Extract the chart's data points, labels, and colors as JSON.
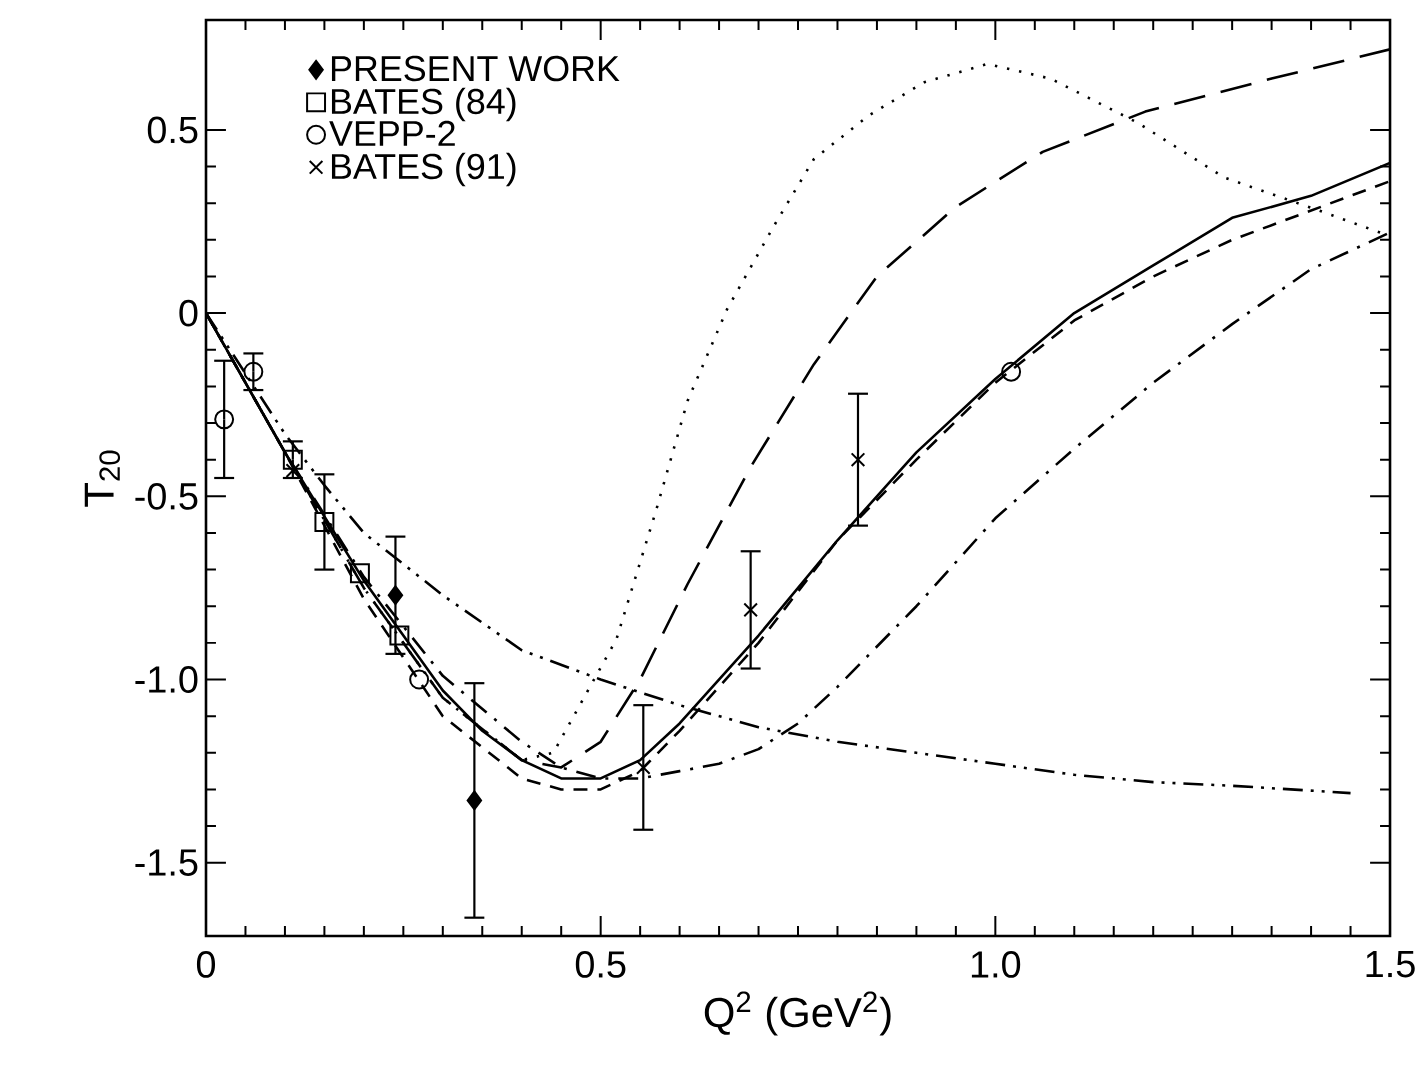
{
  "chart_data": {
    "type": "scatter",
    "xlabel": "Q$^{2}$ (GeV$^{2}$)",
    "ylabel": "T$_{20}$",
    "xlim": [
      0,
      1.5
    ],
    "ylim": [
      -1.7,
      0.8
    ],
    "xticks": [
      0,
      0.5,
      {
        "value": 1.0,
        "label": "1.0"
      },
      1.5
    ],
    "yticks": [
      -1.5,
      {
        "value": -1.0,
        "label": "-1.0"
      },
      -0.5,
      0,
      0.5
    ],
    "legend": "top left",
    "series": [
      {
        "name": "PRESENT WORK",
        "marker": "diamond",
        "color": "#000000",
        "x": [
          0.24,
          0.34
        ],
        "values": [
          -0.77,
          -1.33
        ],
        "errors": [
          0.16,
          0.32
        ]
      },
      {
        "name": "BATES (84)",
        "marker": "square",
        "color": "#000000",
        "x": [
          0.11,
          0.15,
          0.195,
          0.245
        ],
        "values": [
          -0.4,
          -0.57,
          -0.71,
          -0.88
        ],
        "errors": [
          0.05,
          0.13,
          null,
          null
        ]
      },
      {
        "name": "VEPP-2",
        "marker": "circle",
        "color": "#000000",
        "x": [
          0.023,
          0.06,
          0.27,
          1.02
        ],
        "values": [
          -0.29,
          -0.16,
          -1.0,
          -0.16
        ],
        "errors": [
          0.16,
          0.05,
          null,
          null
        ]
      },
      {
        "name": "BATES (91)",
        "marker": "cross",
        "color": "#000000",
        "x": [
          0.11,
          0.554,
          0.69,
          0.826
        ],
        "values": [
          -0.43,
          -1.24,
          -0.81,
          -0.4
        ],
        "errors": [
          null,
          0.17,
          0.16,
          0.18
        ]
      },
      {
        "type": "line",
        "line_style": "solid",
        "color": "#000000",
        "x": [
          0,
          0.1,
          0.2,
          0.3,
          0.35,
          0.4,
          0.45,
          0.5,
          0.55,
          0.6,
          0.65,
          0.7,
          0.8,
          0.9,
          1.0,
          1.1,
          1.2,
          1.3,
          1.4,
          1.5
        ],
        "values": [
          0,
          -0.38,
          -0.73,
          -1.03,
          -1.14,
          -1.22,
          -1.27,
          -1.27,
          -1.22,
          -1.12,
          -1.0,
          -0.88,
          -0.62,
          -0.38,
          -0.18,
          0.0,
          0.13,
          0.26,
          0.32,
          0.41
        ]
      },
      {
        "type": "line",
        "line_style": "dashed",
        "color": "#000000",
        "x": [
          0,
          0.1,
          0.2,
          0.3,
          0.4,
          0.45,
          0.5,
          0.55,
          0.6,
          0.7,
          0.8,
          0.9,
          1.0,
          1.1,
          1.2,
          1.3,
          1.4,
          1.5
        ],
        "values": [
          0,
          -0.38,
          -0.78,
          -1.1,
          -1.27,
          -1.3,
          -1.3,
          -1.25,
          -1.14,
          -0.9,
          -0.62,
          -0.4,
          -0.19,
          -0.02,
          0.1,
          0.2,
          0.28,
          0.36
        ]
      },
      {
        "type": "line",
        "line_style": "long dashed",
        "color": "#000000",
        "x": [
          0,
          0.1,
          0.2,
          0.3,
          0.4,
          0.45,
          0.5,
          0.55,
          0.61,
          0.69,
          0.77,
          0.85,
          0.95,
          1.06,
          1.19,
          1.35,
          1.5
        ],
        "values": [
          0,
          -0.38,
          -0.75,
          -1.05,
          -1.22,
          -1.24,
          -1.17,
          -1.0,
          -0.74,
          -0.42,
          -0.14,
          0.1,
          0.29,
          0.44,
          0.55,
          0.64,
          0.72
        ]
      },
      {
        "type": "line",
        "line_style": "dotted",
        "color": "#000000",
        "x": [
          0,
          0.1,
          0.2,
          0.3,
          0.4,
          0.44,
          0.52,
          0.57,
          0.61,
          0.66,
          0.72,
          0.77,
          0.84,
          0.91,
          0.99,
          1.07,
          1.18,
          1.29,
          1.41,
          1.5
        ],
        "values": [
          0,
          -0.38,
          -0.75,
          -1.05,
          -1.22,
          -1.2,
          -0.89,
          -0.54,
          -0.24,
          0.01,
          0.24,
          0.42,
          0.54,
          0.63,
          0.68,
          0.64,
          0.52,
          0.37,
          0.28,
          0.21
        ]
      },
      {
        "type": "line",
        "line_style": "dashdotted",
        "color": "#000000",
        "x": [
          0,
          0.1,
          0.2,
          0.3,
          0.4,
          0.45,
          0.5,
          0.55,
          0.6,
          0.65,
          0.7,
          0.75,
          0.8,
          0.9,
          1.0,
          1.1,
          1.2,
          1.3,
          1.4,
          1.5
        ],
        "values": [
          0,
          -0.38,
          -0.72,
          -0.99,
          -1.17,
          -1.24,
          -1.27,
          -1.27,
          -1.25,
          -1.23,
          -1.19,
          -1.12,
          -1.02,
          -0.8,
          -0.56,
          -0.37,
          -0.19,
          -0.03,
          0.12,
          0.22
        ]
      },
      {
        "type": "line",
        "line_style": "dashdotdotted",
        "color": "#000000",
        "x": [
          0,
          0.1,
          0.15,
          0.2,
          0.3,
          0.4,
          0.5,
          0.6,
          0.7,
          0.8,
          0.9,
          1.0,
          1.1,
          1.2,
          1.3,
          1.45
        ],
        "values": [
          0,
          -0.33,
          -0.47,
          -0.6,
          -0.77,
          -0.92,
          -1.0,
          -1.07,
          -1.13,
          -1.17,
          -1.2,
          -1.23,
          -1.26,
          -1.28,
          -1.29,
          -1.31
        ]
      }
    ]
  }
}
